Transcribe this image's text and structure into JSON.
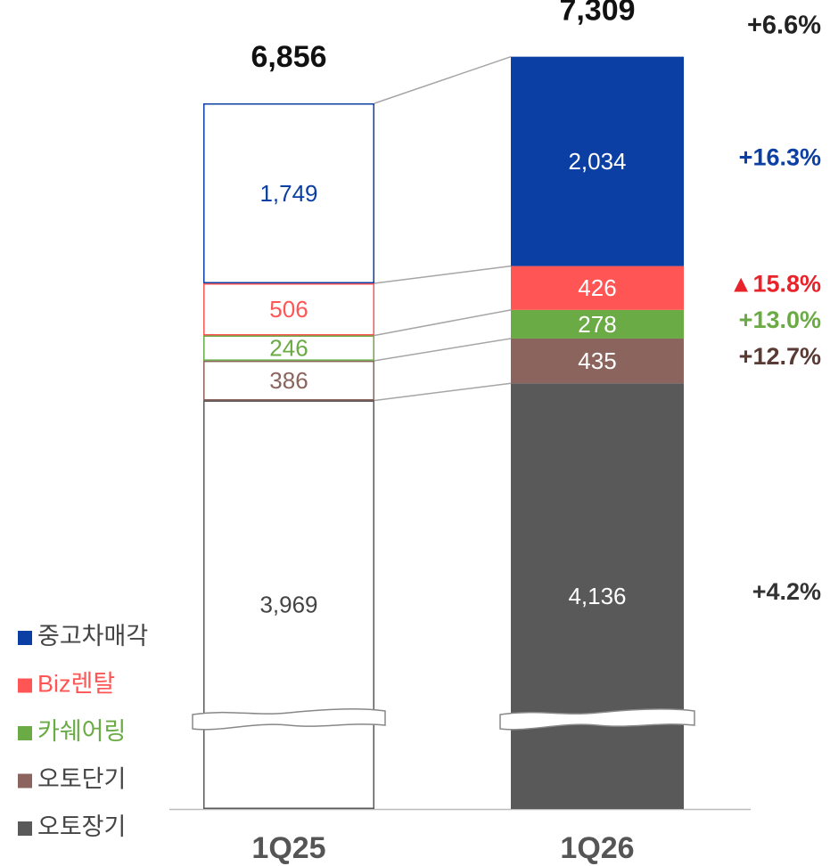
{
  "chart_data": {
    "type": "stacked_bar",
    "categories": [
      "1Q25",
      "1Q26"
    ],
    "ylim": [
      0,
      7860
    ],
    "series": [
      {
        "name": "중고차매각",
        "color": "#0b3fa3",
        "legend_color": "#444444",
        "growth_color": "#0b3fa3",
        "values": [
          1749,
          2034
        ],
        "value_labels": [
          "1,749",
          "2,034"
        ],
        "growth": 16.3,
        "growth_label": "+16.3%"
      },
      {
        "name": "Biz렌탈",
        "color": "#ff5555",
        "legend_color": "#ff5555",
        "growth_color": "#e8242a",
        "values": [
          506,
          426
        ],
        "value_labels": [
          "506",
          "426"
        ],
        "growth": -15.8,
        "growth_label": "▲15.8%"
      },
      {
        "name": "카쉐어링",
        "color": "#6aab45",
        "legend_color": "#6aab45",
        "growth_color": "#6aab45",
        "values": [
          246,
          278
        ],
        "value_labels": [
          "246",
          "278"
        ],
        "growth": 13.0,
        "growth_label": "+13.0%"
      },
      {
        "name": "오토단기",
        "color": "#8a645d",
        "legend_color": "#444444",
        "growth_color": "#5a3a34",
        "values": [
          386,
          435
        ],
        "value_labels": [
          "386",
          "435"
        ],
        "growth": 12.7,
        "growth_label": "+12.7%"
      },
      {
        "name": "오토장기",
        "color": "#595959",
        "legend_color": "#444444",
        "growth_color": "#333333",
        "values": [
          3969,
          4136
        ],
        "value_labels": [
          "3,969",
          "4,136"
        ],
        "growth": 4.2,
        "growth_label": "+4.2%"
      }
    ],
    "totals": {
      "values": [
        6856,
        7309
      ],
      "value_labels": [
        "6,856",
        "7,309"
      ]
    },
    "total_growth": 6.6,
    "total_growth_label": "+6.6%"
  }
}
